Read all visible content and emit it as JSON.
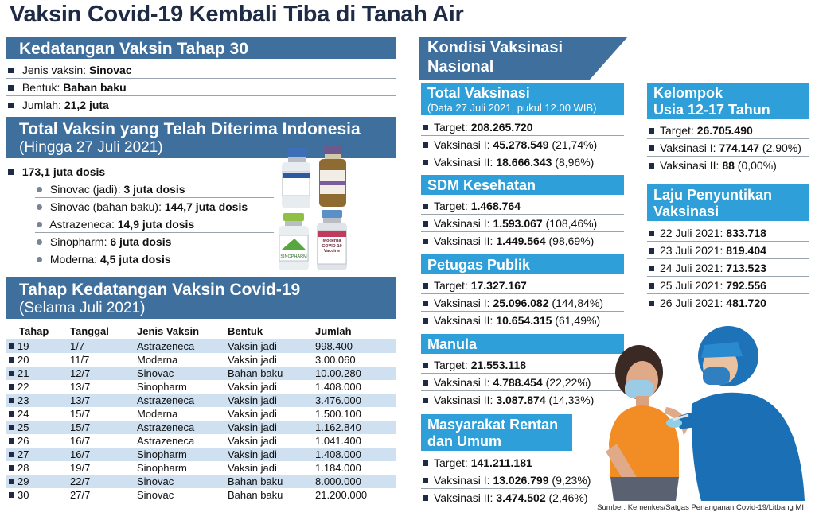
{
  "title": "Vaksin Covid-19 Kembali Tiba di Tanah Air",
  "kedatangan": {
    "title": "Kedatangan Vaksin Tahap 30",
    "items": [
      {
        "label": "Jenis vaksin: ",
        "value": "Sinovac"
      },
      {
        "label": "Bentuk: ",
        "value": "Bahan baku"
      },
      {
        "label": "Jumlah: ",
        "value": "21,2 juta"
      }
    ]
  },
  "total_diterima": {
    "title": "Total Vaksin yang Telah Diterima Indonesia",
    "subtitle": "(Hingga 27 Juli 2021)",
    "total": "173,1 juta dosis",
    "items": [
      {
        "label": "Sinovac (jadi): ",
        "value": "3 juta dosis"
      },
      {
        "label": "Sinovac (bahan baku): ",
        "value": "144,7 juta dosis"
      },
      {
        "label": "Astrazeneca: ",
        "value": "14,9 juta dosis"
      },
      {
        "label": "Sinopharm: ",
        "value": "6 juta dosis"
      },
      {
        "label": "Moderna: ",
        "value": "4,5 juta dosis"
      }
    ]
  },
  "tahap": {
    "title": "Tahap Kedatangan Vaksin Covid-19",
    "subtitle": "(Selama Juli 2021)",
    "headers": [
      "Tahap",
      "Tanggal",
      "Jenis Vaksin",
      "Bentuk",
      "Jumlah"
    ],
    "rows": [
      [
        "19",
        "1/7",
        "Astrazeneca",
        "Vaksin jadi",
        "998.400"
      ],
      [
        "20",
        "11/7",
        "Moderna",
        "Vaksin jadi",
        "3.00.060"
      ],
      [
        "21",
        "12/7",
        "Sinovac",
        "Bahan baku",
        "10.00.280"
      ],
      [
        "22",
        "13/7",
        "Sinopharm",
        "Vaksin jadi",
        "1.408.000"
      ],
      [
        "23",
        "13/7",
        "Astrazeneca",
        "Vaksin jadi",
        "3.476.000"
      ],
      [
        "24",
        "15/7",
        "Moderna",
        "Vaksin jadi",
        "1.500.100"
      ],
      [
        "25",
        "15/7",
        "Astrazeneca",
        "Vaksin jadi",
        "1.162.840"
      ],
      [
        "26",
        "16/7",
        "Astrazeneca",
        "Vaksin jadi",
        "1.041.400"
      ],
      [
        "27",
        "16/7",
        "Sinopharm",
        "Vaksin jadi",
        "1.408.000"
      ],
      [
        "28",
        "19/7",
        "Sinopharm",
        "Vaksin jadi",
        "1.184.000"
      ],
      [
        "29",
        "22/7",
        "Sinovac",
        "Bahan baku",
        "8.000.000"
      ],
      [
        "30",
        "27/7",
        "Sinovac",
        "Bahan baku",
        "21.200.000"
      ]
    ]
  },
  "kondisi": {
    "line1": "Kondisi Vaksinasi",
    "line2": "Nasional"
  },
  "total_vaksinasi": {
    "title": "Total Vaksinasi",
    "subtitle": "(Data 27 Juli 2021, pukul 12.00 WIB)",
    "items": [
      {
        "label": "Target: ",
        "value": "208.265.720",
        "pct": ""
      },
      {
        "label": "Vaksinasi I: ",
        "value": "45.278.549",
        "pct": " (21,74%)"
      },
      {
        "label": "Vaksinasi II: ",
        "value": "18.666.343",
        "pct": " (8,96%)"
      }
    ]
  },
  "sdm": {
    "title": "SDM Kesehatan",
    "items": [
      {
        "label": "Target: ",
        "value": "1.468.764",
        "pct": ""
      },
      {
        "label": "Vaksinasi I: ",
        "value": "1.593.067",
        "pct": " (108,46%)"
      },
      {
        "label": "Vaksinasi II: ",
        "value": "1.449.564",
        "pct": " (98,69%)"
      }
    ]
  },
  "petugas": {
    "title": "Petugas Publik",
    "items": [
      {
        "label": "Target: ",
        "value": "17.327.167",
        "pct": ""
      },
      {
        "label": "Vaksinasi I: ",
        "value": "25.096.082",
        "pct": " (144,84%)"
      },
      {
        "label": "Vaksinasi II: ",
        "value": "10.654.315",
        "pct": " (61,49%)"
      }
    ]
  },
  "manula": {
    "title": "Manula",
    "items": [
      {
        "label": "Target: ",
        "value": "21.553.118",
        "pct": ""
      },
      {
        "label": "Vaksinasi I: ",
        "value": "4.788.454",
        "pct": " (22,22%)"
      },
      {
        "label": "Vaksinasi II: ",
        "value": "3.087.874",
        "pct": " (14,33%)"
      }
    ]
  },
  "rentan": {
    "title1": "Masyarakat Rentan",
    "title2": "dan Umum",
    "items": [
      {
        "label": "Target: ",
        "value": "141.211.181",
        "pct": ""
      },
      {
        "label": "Vaksinasi I: ",
        "value": "13.026.799",
        "pct": " (9,23%)"
      },
      {
        "label": "Vaksinasi II: ",
        "value": "3.474.502",
        "pct": " (2,46%)"
      }
    ]
  },
  "usia": {
    "title1": "Kelompok",
    "title2": "Usia 12-17 Tahun",
    "items": [
      {
        "label": "Target: ",
        "value": "26.705.490",
        "pct": ""
      },
      {
        "label": "Vaksinasi I: ",
        "value": "774.147",
        "pct": " (2,90%)"
      },
      {
        "label": "Vaksinasi II: ",
        "value": "88",
        "pct": " (0,00%)"
      }
    ]
  },
  "laju": {
    "title1": "Laju Penyuntikan",
    "title2": "Vaksinasi",
    "items": [
      {
        "label": "22 Juli 2021: ",
        "value": "833.718"
      },
      {
        "label": "23 Juli 2021: ",
        "value": "819.404"
      },
      {
        "label": "24 Juli 2021: ",
        "value": "713.523"
      },
      {
        "label": "25 Juli 2021: ",
        "value": "792.556"
      },
      {
        "label": "26 Juli 2021: ",
        "value": "481.720"
      }
    ]
  },
  "vial_labels": {
    "sinopharm": "SINOPHARM",
    "moderna": "Moderna COVID-19 Vaccine"
  },
  "source": "Sumber: Kemenkes/Satgas Penanganan Covid-19/Litbang MI",
  "colors": {
    "header": "#3f6f9d",
    "header_light": "#2e9fd9",
    "row_alt": "#cfe0f0"
  }
}
